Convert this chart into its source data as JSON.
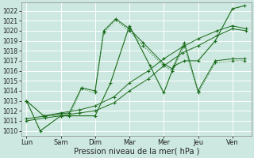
{
  "background_color": "#cce8e0",
  "grid_color": "#ffffff",
  "line_color": "#1a6b1a",
  "xlabel": "Pression niveau de la mer( hPa )",
  "xlabels": [
    "Lun",
    "Sam",
    "Dim",
    "Mar",
    "Mer",
    "Jeu",
    "Ven"
  ],
  "ylim": [
    1009.5,
    1022.8
  ],
  "yticks": [
    1010,
    1011,
    1012,
    1013,
    1014,
    1015,
    1016,
    1017,
    1018,
    1019,
    1020,
    1021,
    1022
  ],
  "line_dotted_x": [
    0,
    0.5,
    1.0,
    1.25,
    1.6,
    2.0,
    2.25,
    2.6,
    3.0,
    3.4,
    4.0,
    4.25,
    4.6,
    5.0,
    5.5,
    6.0,
    6.35
  ],
  "line_dotted_y": [
    1013,
    1011.5,
    1011.5,
    1011.5,
    1014.2,
    1013.8,
    1019.8,
    1021.1,
    1020.0,
    1018.5,
    1016.5,
    1016.0,
    1018.5,
    1013.8,
    1016.8,
    1017.0,
    1017.0
  ],
  "line_jagged_x": [
    0,
    0.5,
    1.0,
    1.25,
    1.6,
    2.0,
    2.25,
    2.6,
    3.0,
    3.4,
    4.0,
    4.25,
    4.6,
    5.0,
    5.5,
    6.0,
    6.35
  ],
  "line_jagged_y": [
    1013,
    1011.5,
    1011.7,
    1011.8,
    1014.3,
    1014.0,
    1020.0,
    1021.2,
    1020.2,
    1018.8,
    1016.7,
    1016.2,
    1018.8,
    1014.0,
    1017.0,
    1017.2,
    1017.2
  ],
  "line_trend1_x": [
    0,
    0.55,
    1.0,
    1.55,
    2.0,
    2.55,
    3.0,
    3.55,
    4.0,
    4.55,
    5.0,
    5.55,
    6.0,
    6.4
  ],
  "line_trend1_y": [
    1011.0,
    1011.3,
    1011.5,
    1011.8,
    1012.0,
    1012.8,
    1014.0,
    1015.2,
    1016.5,
    1017.8,
    1018.5,
    1019.5,
    1020.2,
    1020.0
  ],
  "line_trend2_x": [
    0,
    0.55,
    1.0,
    1.55,
    2.0,
    2.55,
    3.0,
    3.55,
    4.0,
    4.55,
    5.0,
    5.55,
    6.0,
    6.4
  ],
  "line_trend2_y": [
    1011.2,
    1011.5,
    1011.8,
    1012.1,
    1012.5,
    1013.4,
    1014.8,
    1016.0,
    1017.2,
    1018.4,
    1019.2,
    1020.0,
    1020.5,
    1020.2
  ],
  "line_main_x": [
    0,
    0.4,
    1.0,
    2.0,
    2.45,
    3.0,
    3.6,
    4.0,
    4.3,
    4.6,
    5.0,
    5.5,
    6.0,
    6.35
  ],
  "line_main_y": [
    1013,
    1010.0,
    1011.5,
    1011.5,
    1014.8,
    1020.5,
    1016.5,
    1013.8,
    1016.5,
    1017.0,
    1017.0,
    1019.0,
    1022.2,
    1022.5
  ]
}
